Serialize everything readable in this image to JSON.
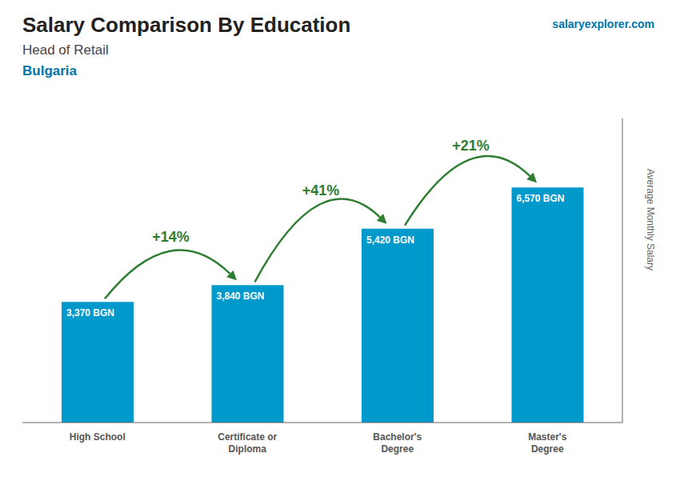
{
  "chart_data": {
    "type": "bar",
    "title": "Salary Comparison By Education",
    "subtitle": [
      "Head of Retail",
      "Bulgaria"
    ],
    "ylabel": "Average Monthly Salary",
    "categories": [
      "High School",
      "Certificate or\nDiploma",
      "Bachelor's\nDegree",
      "Master's\nDegree"
    ],
    "values": [
      3370,
      3840,
      5420,
      6570
    ],
    "value_labels": [
      "3,370 BGN",
      "3,840 BGN",
      "5,420 BGN",
      "6,570 BGN"
    ],
    "data_labels": true,
    "color": "#0099cc",
    "ylim": [
      0,
      8500
    ],
    "tick_labels": "x",
    "grid": false,
    "annotations": [
      {
        "text": "salaryexplorer.com"
      },
      {
        "text": "+14%",
        "between": [
          0,
          1
        ]
      },
      {
        "text": "+41%",
        "between": [
          1,
          2
        ]
      },
      {
        "text": "+21%",
        "between": [
          2,
          3
        ]
      }
    ]
  }
}
